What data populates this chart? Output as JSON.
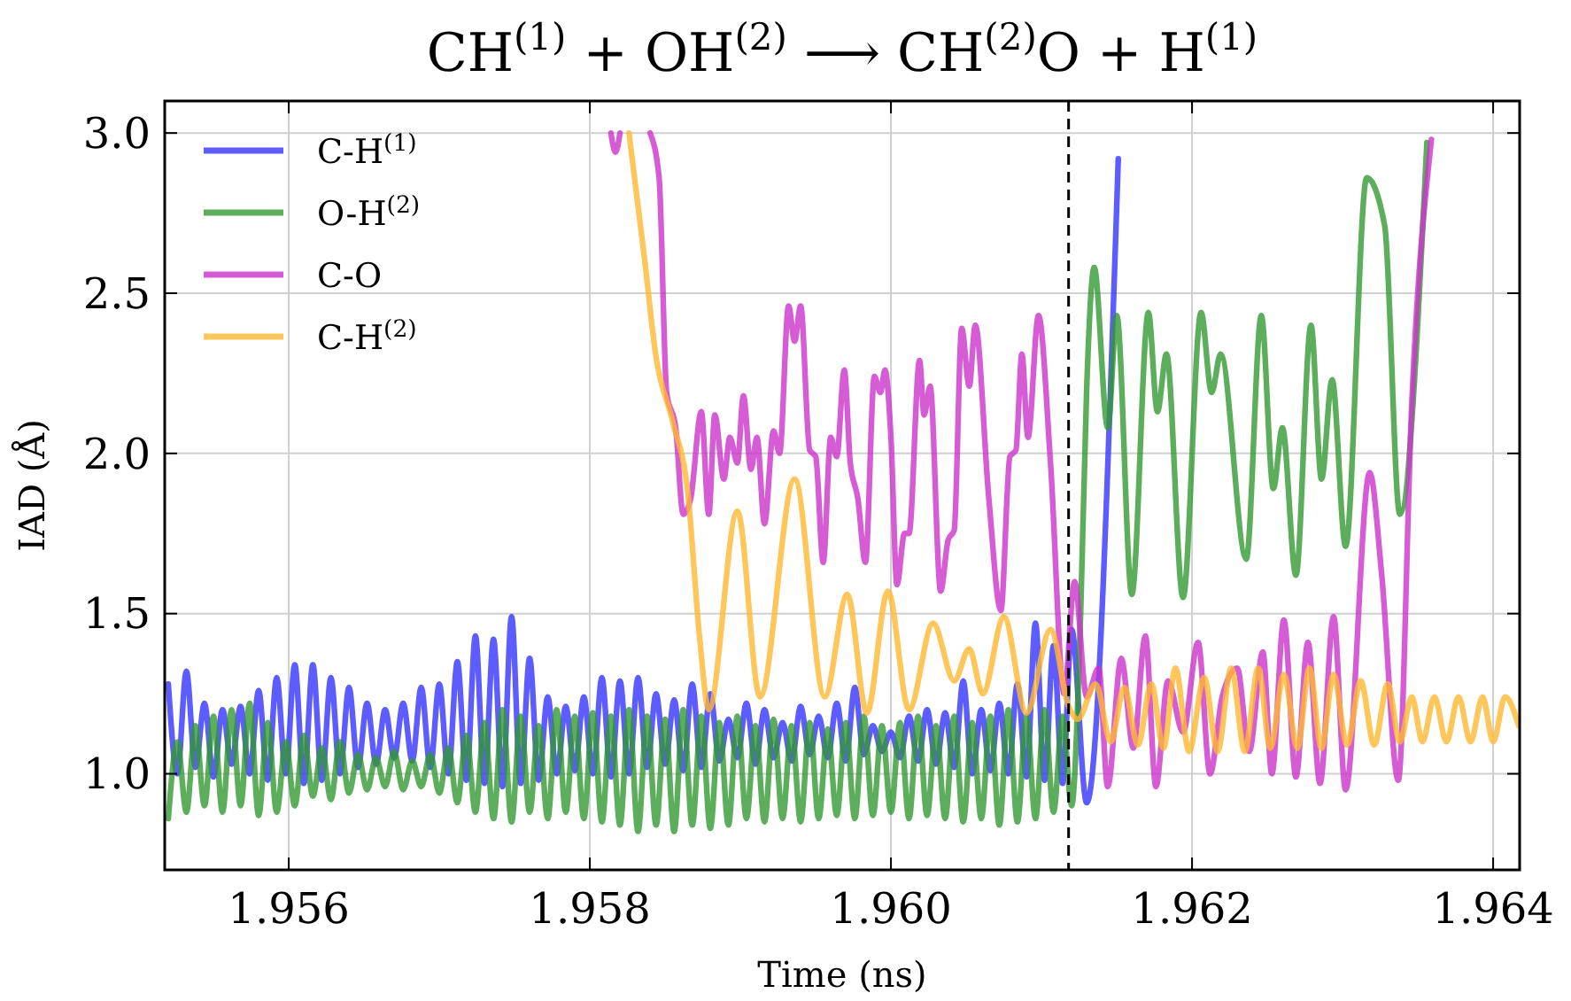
{
  "chart_data": {
    "type": "line",
    "title": "CH$^{(1)}$ + OH$^{(2)}$ ⟶ CH$^{(2)}$O + H$^{(1)}$",
    "xlabel": "Time (ns)",
    "ylabel": "IAD (Å)",
    "xlim": [
      1.955176,
      1.964176
    ],
    "xticks": [
      1.956,
      1.958,
      {
        "value": 1.96,
        "label": "1.960"
      },
      1.962,
      1.964
    ],
    "ylim": [
      0.7,
      3.1
    ],
    "yticks": [
      {
        "value": 1,
        "label": "1.0"
      },
      1.5,
      {
        "value": 2,
        "label": "2.0"
      },
      2.5,
      {
        "value": 3,
        "label": "3.0"
      }
    ],
    "grid": true,
    "legend": "top left",
    "marker": "none",
    "line_style": "solid",
    "ref_lines": [
      {
        "axis": "x",
        "value": 1.96118,
        "color": "#000000",
        "line_style": "dashed"
      }
    ],
    "series": [
      {
        "name": "C-H$^{(1)}$",
        "color": "#3333ff",
        "x": [
          1.9552,
          1.95526,
          1.95532,
          1.95538,
          1.95544,
          1.9555,
          1.95556,
          1.95562,
          1.95568,
          1.95574,
          1.9558,
          1.95586,
          1.95592,
          1.95598,
          1.95604,
          1.9561,
          1.95616,
          1.95622,
          1.95628,
          1.95634,
          1.9564,
          1.95646,
          1.95652,
          1.95658,
          1.95664,
          1.9567,
          1.95676,
          1.95682,
          1.95688,
          1.95694,
          1.957,
          1.95706,
          1.95712,
          1.95718,
          1.95724,
          1.9573,
          1.95736,
          1.95742,
          1.95748,
          1.95754,
          1.9576,
          1.95766,
          1.95772,
          1.95778,
          1.95784,
          1.9579,
          1.95796,
          1.95802,
          1.95808,
          1.95814,
          1.9582,
          1.95826,
          1.95832,
          1.95838,
          1.95844,
          1.9585,
          1.95856,
          1.95862,
          1.95868,
          1.95874,
          1.9588,
          1.95886,
          1.95892,
          1.95898,
          1.95904,
          1.9591,
          1.95916,
          1.95922,
          1.95928,
          1.95934,
          1.9594,
          1.95946,
          1.95952,
          1.95958,
          1.95964,
          1.9597,
          1.95976,
          1.95982,
          1.95988,
          1.95994,
          1.96,
          1.96006,
          1.96012,
          1.96018,
          1.96024,
          1.9603,
          1.96036,
          1.96042,
          1.96048,
          1.96054,
          1.9606,
          1.96066,
          1.96072,
          1.96078,
          1.96084,
          1.9609,
          1.96096,
          1.96102,
          1.96108,
          1.96114,
          1.9612,
          1.9613,
          1.96151
        ],
        "values": [
          1.28,
          1.0,
          1.32,
          1.02,
          1.22,
          0.99,
          1.2,
          1.03,
          1.21,
          1.0,
          1.26,
          0.98,
          1.3,
          1.0,
          1.34,
          0.97,
          1.34,
          0.98,
          1.3,
          1.0,
          1.27,
          1.02,
          1.22,
          1.03,
          1.2,
          1.05,
          1.22,
          1.04,
          1.27,
          1.02,
          1.28,
          1.0,
          1.35,
          0.98,
          1.43,
          0.97,
          1.42,
          0.96,
          1.49,
          0.97,
          1.36,
          0.98,
          1.24,
          1.0,
          1.21,
          1.01,
          1.24,
          1.0,
          1.3,
          0.99,
          1.29,
          1.0,
          1.3,
          1.02,
          1.25,
          1.03,
          1.23,
          1.01,
          1.28,
          1.02,
          1.25,
          1.04,
          1.17,
          1.05,
          1.22,
          1.03,
          1.2,
          1.05,
          1.16,
          1.04,
          1.21,
          1.06,
          1.18,
          1.05,
          1.22,
          1.04,
          1.27,
          1.06,
          1.15,
          1.07,
          1.13,
          1.05,
          1.18,
          1.04,
          1.2,
          1.03,
          1.19,
          1.02,
          1.29,
          1.0,
          1.2,
          1.01,
          1.22,
          1.0,
          1.28,
          0.99,
          1.47,
          0.98,
          1.4,
          0.97,
          1.45,
          0.91,
          2.92
        ]
      },
      {
        "name": "O-H$^{(2)}$",
        "color": "#339933",
        "x": [
          1.9552,
          1.95526,
          1.95532,
          1.95538,
          1.95544,
          1.9555,
          1.95556,
          1.95562,
          1.95568,
          1.95574,
          1.9558,
          1.95586,
          1.95592,
          1.95598,
          1.95604,
          1.9561,
          1.95616,
          1.95622,
          1.95628,
          1.95634,
          1.9564,
          1.95646,
          1.95652,
          1.95658,
          1.95664,
          1.9567,
          1.95676,
          1.95682,
          1.95688,
          1.95694,
          1.957,
          1.95706,
          1.95712,
          1.95718,
          1.95724,
          1.9573,
          1.95736,
          1.95742,
          1.95748,
          1.95754,
          1.9576,
          1.95766,
          1.95772,
          1.95778,
          1.95784,
          1.9579,
          1.95796,
          1.95802,
          1.95808,
          1.95814,
          1.9582,
          1.95826,
          1.95832,
          1.95838,
          1.95844,
          1.9585,
          1.95856,
          1.95862,
          1.95868,
          1.95874,
          1.9588,
          1.95886,
          1.95892,
          1.95898,
          1.95904,
          1.9591,
          1.95916,
          1.95922,
          1.95928,
          1.95934,
          1.9594,
          1.95946,
          1.95952,
          1.95958,
          1.95964,
          1.9597,
          1.95976,
          1.95982,
          1.95988,
          1.95994,
          1.96,
          1.96006,
          1.96012,
          1.96018,
          1.96024,
          1.9603,
          1.96036,
          1.96042,
          1.96048,
          1.96054,
          1.9606,
          1.96066,
          1.96072,
          1.96078,
          1.96084,
          1.9609,
          1.96096,
          1.96102,
          1.96108,
          1.96114,
          1.9612,
          1.96126,
          1.9613,
          1.96135,
          1.96144,
          1.9615,
          1.9616,
          1.96171,
          1.96177,
          1.96183,
          1.96194,
          1.96206,
          1.96213,
          1.96219,
          1.96236,
          1.96246,
          1.96254,
          1.9626,
          1.96269,
          1.96279,
          1.96286,
          1.96293,
          1.96302,
          1.96316,
          1.96328,
          1.96338,
          1.96356
        ],
        "values": [
          0.86,
          1.1,
          0.88,
          1.15,
          0.9,
          1.18,
          0.88,
          1.2,
          0.9,
          1.22,
          0.87,
          1.16,
          0.88,
          1.1,
          0.9,
          1.12,
          0.93,
          1.08,
          0.92,
          1.1,
          0.94,
          1.06,
          0.95,
          1.05,
          0.96,
          1.07,
          0.95,
          1.04,
          0.96,
          1.06,
          0.94,
          1.08,
          0.91,
          1.12,
          0.88,
          1.16,
          0.86,
          1.2,
          0.85,
          1.18,
          0.88,
          1.15,
          0.86,
          1.2,
          0.88,
          1.18,
          0.86,
          1.19,
          0.85,
          1.18,
          0.84,
          1.2,
          0.82,
          1.18,
          0.84,
          1.17,
          0.82,
          1.2,
          0.84,
          1.18,
          0.83,
          1.16,
          0.84,
          1.18,
          0.86,
          1.15,
          0.85,
          1.17,
          0.86,
          1.15,
          0.85,
          1.16,
          0.86,
          1.14,
          0.87,
          1.16,
          0.86,
          1.18,
          0.87,
          1.15,
          0.88,
          1.16,
          0.86,
          1.18,
          0.87,
          1.15,
          0.86,
          1.18,
          0.85,
          1.16,
          0.86,
          1.18,
          0.84,
          1.2,
          0.85,
          1.18,
          0.86,
          1.2,
          0.88,
          1.18,
          0.9,
          1.5,
          2.2,
          2.58,
          2.08,
          2.43,
          1.56,
          2.44,
          2.13,
          2.31,
          1.55,
          2.44,
          2.19,
          2.31,
          1.67,
          2.43,
          1.89,
          2.08,
          1.62,
          2.4,
          1.92,
          2.23,
          1.71,
          2.86,
          2.71,
          1.81,
          2.97
        ]
      },
      {
        "name": "C-O",
        "color": "#cc33cc",
        "x": [
          1.95814,
          1.95817,
          1.9582,
          1.9583,
          1.9584,
          1.95846,
          1.95851,
          1.95857,
          1.95862,
          1.95867,
          1.95874,
          1.95879,
          1.95883,
          1.95889,
          1.95893,
          1.95898,
          1.95902,
          1.95907,
          1.95911,
          1.95916,
          1.95922,
          1.95926,
          1.95932,
          1.95936,
          1.9594,
          1.95946,
          1.9595,
          1.95955,
          1.9596,
          1.95964,
          1.95969,
          1.95973,
          1.95978,
          1.95983,
          1.95989,
          1.95993,
          1.95996,
          1.96,
          1.96004,
          1.96009,
          1.96012,
          1.96019,
          1.96022,
          1.96026,
          1.96033,
          1.96038,
          1.96042,
          1.96047,
          1.96052,
          1.96056,
          1.96065,
          1.96073,
          1.96079,
          1.96083,
          1.96087,
          1.96091,
          1.96098,
          1.96106,
          1.96115,
          1.96122,
          1.9613,
          1.96138,
          1.96144,
          1.96153,
          1.96161,
          1.96169,
          1.96176,
          1.96184,
          1.96194,
          1.96204,
          1.96212,
          1.9622,
          1.9623,
          1.96238,
          1.96247,
          1.96253,
          1.96261,
          1.96269,
          1.96277,
          1.96285,
          1.96294,
          1.96302,
          1.96318,
          1.96326,
          1.96337,
          1.96346,
          1.96359
        ],
        "values": [
          3.0,
          2.94,
          3.0,
          null,
          3.0,
          2.86,
          2.19,
          2.08,
          1.81,
          1.86,
          2.13,
          1.81,
          2.12,
          1.92,
          2.05,
          1.97,
          2.18,
          1.95,
          2.05,
          1.78,
          2.07,
          2.0,
          2.46,
          2.35,
          2.46,
          2.01,
          1.99,
          1.66,
          2.05,
          1.99,
          2.26,
          1.97,
          1.86,
          1.66,
          2.24,
          2.19,
          2.26,
          2.05,
          1.59,
          1.75,
          1.75,
          2.29,
          2.12,
          2.21,
          1.57,
          1.73,
          1.76,
          2.39,
          2.21,
          2.4,
          1.86,
          1.51,
          1.99,
          2.01,
          2.31,
          2.05,
          2.43,
          1.97,
          1.25,
          1.6,
          1.24,
          1.33,
          0.96,
          1.36,
          1.08,
          1.43,
          0.96,
          1.29,
          1.13,
          1.41,
          1.0,
          1.24,
          1.33,
          1.07,
          1.38,
          1.0,
          1.48,
          0.99,
          1.41,
          0.97,
          1.49,
          0.95,
          1.94,
          1.62,
          0.98,
          2.16,
          2.98
        ]
      },
      {
        "name": "C-H$^{(2)}$",
        "color": "#ffb833",
        "x": [
          1.95826,
          1.95836,
          1.95844,
          1.95855,
          1.95865,
          1.95873,
          1.95879,
          1.95898,
          1.95913,
          1.95936,
          1.95956,
          1.95971,
          1.95984,
          1.95998,
          1.96012,
          1.96028,
          1.96042,
          1.96052,
          1.96061,
          1.96075,
          1.9609,
          1.96106,
          1.96118,
          1.96124,
          1.96136,
          1.96146,
          1.96155,
          1.96164,
          1.96173,
          1.96181,
          1.96189,
          1.96198,
          1.96208,
          1.96217,
          1.96226,
          1.96235,
          1.96244,
          1.96252,
          1.96261,
          1.9627,
          1.96278,
          1.96286,
          1.96294,
          1.96303,
          1.96312,
          1.96321,
          1.9633,
          1.96338,
          1.96346,
          1.96353,
          1.96361,
          1.96369,
          1.96377,
          1.96385,
          1.96393,
          1.964,
          1.96408,
          1.96417
        ],
        "values": [
          3.0,
          2.62,
          2.3,
          2.1,
          1.88,
          1.42,
          1.2,
          1.82,
          1.24,
          1.92,
          1.24,
          1.56,
          1.19,
          1.57,
          1.2,
          1.47,
          1.29,
          1.39,
          1.25,
          1.49,
          1.19,
          1.45,
          1.21,
          1.17,
          1.28,
          1.1,
          1.27,
          1.09,
          1.28,
          1.08,
          1.33,
          1.07,
          1.3,
          1.07,
          1.33,
          1.07,
          1.33,
          1.08,
          1.31,
          1.08,
          1.33,
          1.08,
          1.31,
          1.09,
          1.29,
          1.09,
          1.28,
          1.1,
          1.24,
          1.1,
          1.24,
          1.1,
          1.24,
          1.1,
          1.24,
          1.1,
          1.24,
          1.15
        ]
      }
    ]
  }
}
